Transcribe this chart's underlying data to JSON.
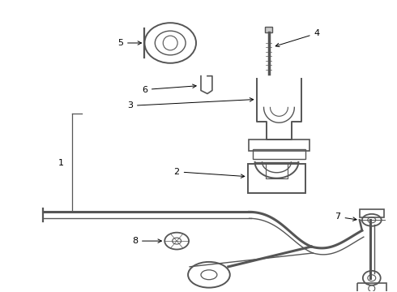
{
  "bg_color": "#ffffff",
  "lc": "#555555",
  "tc": "#000000",
  "fig_w": 4.9,
  "fig_h": 3.6,
  "dpi": 100
}
